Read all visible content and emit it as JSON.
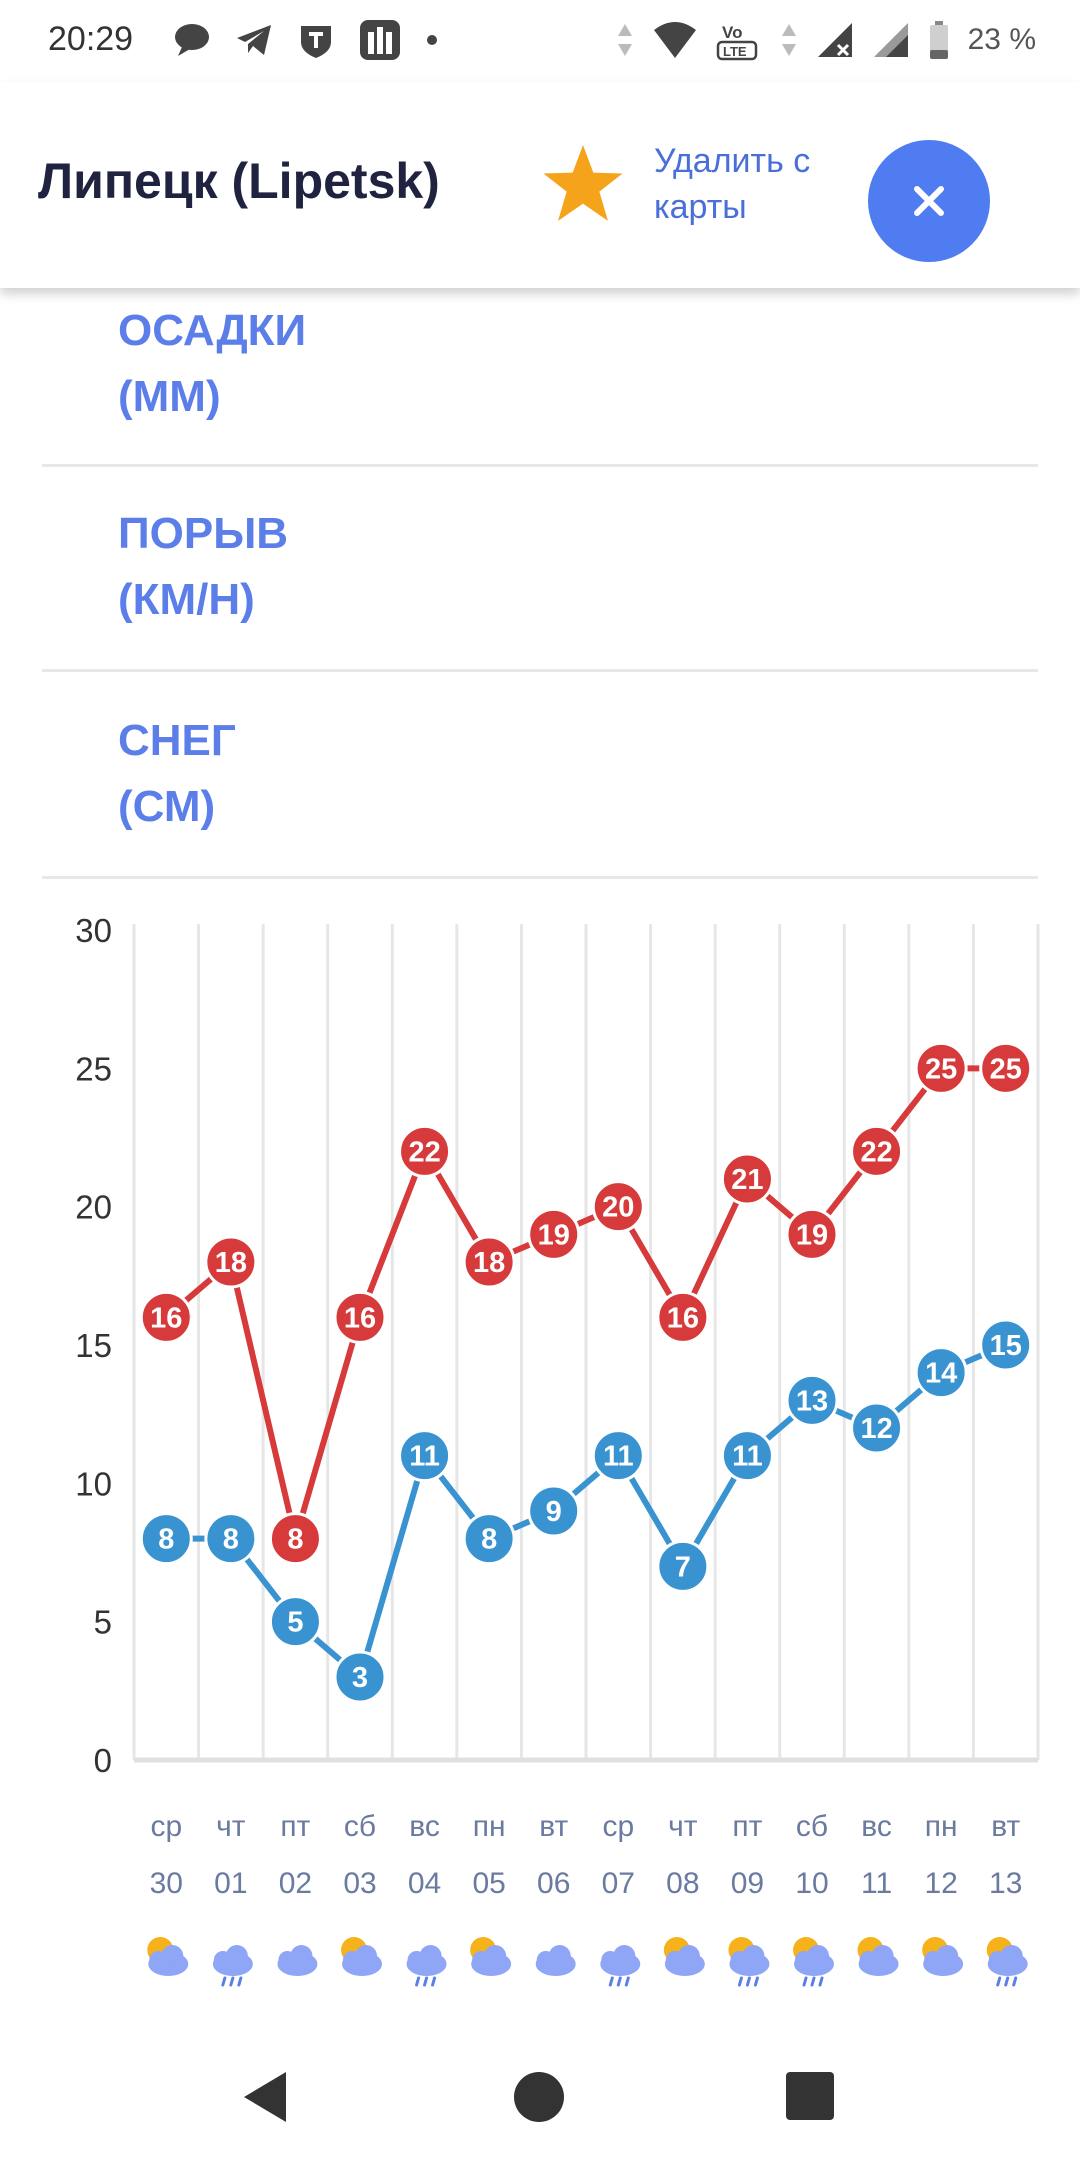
{
  "status": {
    "time": "20:29",
    "battery": "23 %",
    "left_icons": [
      "chat-bubble-icon",
      "telegram-icon",
      "shield-icon",
      "gallery-icon",
      "dot-icon"
    ],
    "right_icons": [
      "data-arrows-icon",
      "wifi-icon",
      "volte-icon",
      "signal-icon",
      "signal-icon",
      "battery-icon"
    ]
  },
  "header": {
    "city": "Липецк (Lipetsk)",
    "remove_label": "Удалить с карты",
    "accent": "#4f7cf0",
    "star_color": "#f5a31a"
  },
  "rows": [
    {
      "label_line1": "ОСАДКИ",
      "label_line2": "(ММ)"
    },
    {
      "label_line1": "ПОРЫВ",
      "label_line2": "(КМ/Н)"
    },
    {
      "label_line1": "СНЕГ",
      "label_line2": "(СМ)"
    }
  ],
  "chart_data": {
    "type": "line",
    "title": "",
    "xlabel": "",
    "ylabel": "",
    "ylim": [
      0,
      30
    ],
    "yticks": [
      0,
      5,
      10,
      15,
      20,
      25,
      30
    ],
    "grid": true,
    "categories": [
      {
        "day": "ср",
        "date": "30"
      },
      {
        "day": "чт",
        "date": "01"
      },
      {
        "day": "пт",
        "date": "02"
      },
      {
        "day": "сб",
        "date": "03"
      },
      {
        "day": "вс",
        "date": "04"
      },
      {
        "day": "пн",
        "date": "05"
      },
      {
        "day": "вт",
        "date": "06"
      },
      {
        "day": "ср",
        "date": "07"
      },
      {
        "day": "чт",
        "date": "08"
      },
      {
        "day": "пт",
        "date": "09"
      },
      {
        "day": "сб",
        "date": "10"
      },
      {
        "day": "вс",
        "date": "11"
      },
      {
        "day": "пн",
        "date": "12"
      },
      {
        "day": "вт",
        "date": "13"
      }
    ],
    "series": [
      {
        "color": "#d63a3a",
        "values": [
          16,
          18,
          8,
          16,
          22,
          18,
          19,
          20,
          16,
          21,
          19,
          22,
          25,
          25
        ]
      },
      {
        "color": "#3a93d1",
        "values": [
          8,
          8,
          5,
          3,
          11,
          8,
          9,
          11,
          7,
          11,
          13,
          12,
          14,
          15
        ]
      }
    ],
    "weather_icons": [
      "sun-cloud-icon",
      "cloud-rain-icon",
      "cloud-icon",
      "sun-cloud-icon",
      "cloud-rain-icon",
      "sun-cloud-icon",
      "cloud-icon",
      "cloud-rain-icon",
      "sun-cloud-icon",
      "sun-cloud-rain-icon",
      "sun-cloud-rain-icon",
      "sun-cloud-icon",
      "sun-cloud-icon",
      "sun-cloud-rain-icon"
    ]
  }
}
